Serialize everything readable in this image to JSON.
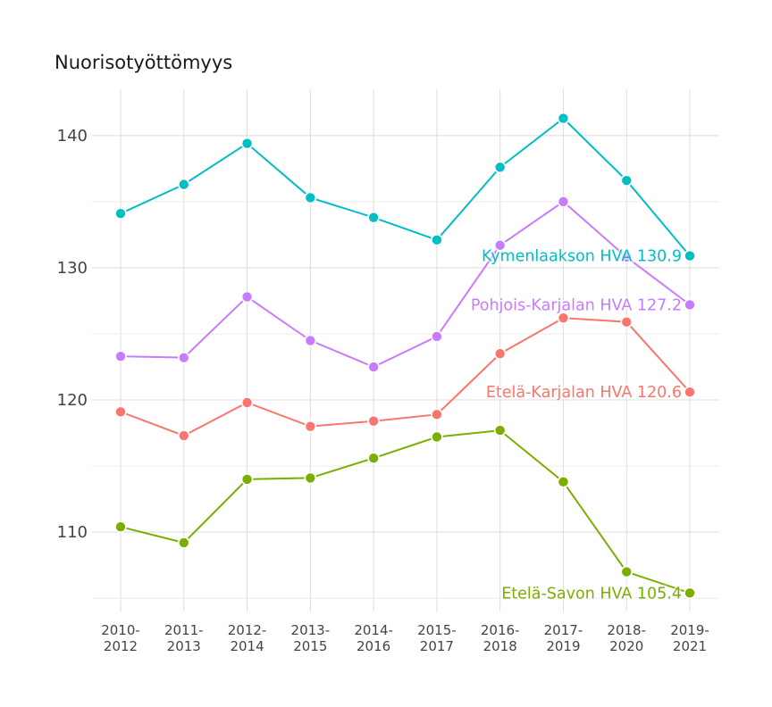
{
  "chart_data": {
    "type": "line",
    "title": "Nuorisotyöttömyys",
    "xlabel": "",
    "ylabel": "",
    "categories": [
      "2010-\n2012",
      "2011-\n2013",
      "2012-\n2014",
      "2013-\n2015",
      "2014-\n2016",
      "2015-\n2017",
      "2016-\n2018",
      "2017-\n2019",
      "2018-\n2020",
      "2019-\n2021"
    ],
    "ylim": [
      104,
      143.5
    ],
    "yticks": [
      110,
      120,
      130,
      140
    ],
    "grid": true,
    "series": [
      {
        "name": "Kymenlaakson HVA",
        "label": "Kymenlaakson HVA 130.9",
        "color": "#00BFC4",
        "values": [
          134.1,
          136.3,
          139.4,
          135.3,
          133.8,
          132.1,
          137.6,
          141.3,
          136.6,
          130.9
        ]
      },
      {
        "name": "Pohjois-Karjalan HVA",
        "label": "Pohjois-Karjalan HVA 127.2",
        "color": "#C77CFF",
        "values": [
          123.3,
          123.2,
          127.8,
          124.5,
          122.5,
          124.8,
          131.7,
          135.0,
          130.8,
          127.2
        ]
      },
      {
        "name": "Etelä-Karjalan HVA",
        "label": "Etelä-Karjalan HVA 120.6",
        "color": "#F8766D",
        "values": [
          119.1,
          117.3,
          119.8,
          118.0,
          118.4,
          118.9,
          123.5,
          126.2,
          125.9,
          120.6
        ]
      },
      {
        "name": "Etelä-Savon HVA",
        "label": "Etelä-Savon HVA 105.4",
        "color": "#7CAE00",
        "values": [
          110.4,
          109.2,
          114.0,
          114.1,
          115.6,
          117.2,
          117.7,
          113.8,
          107.0,
          105.4
        ]
      }
    ]
  }
}
